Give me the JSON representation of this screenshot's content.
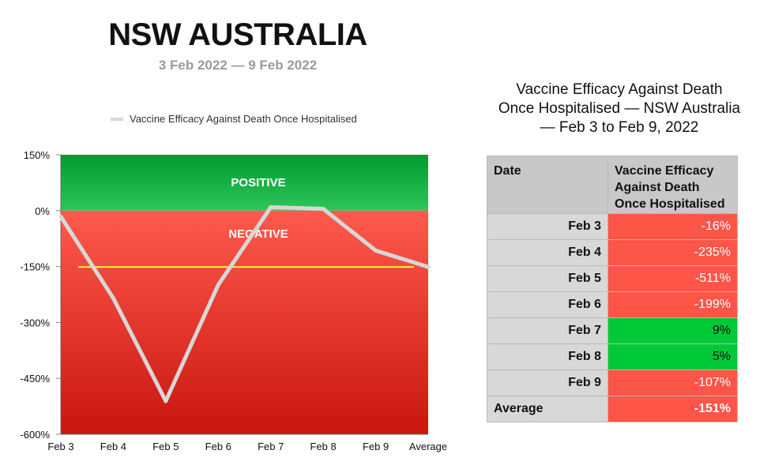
{
  "header": {
    "title": "NSW AUSTRALIA",
    "subtitle": "3 Feb 2022 — 9 Feb 2022"
  },
  "chart_data": {
    "type": "line",
    "title": "NSW AUSTRALIA",
    "subtitle": "3 Feb 2022 — 9 Feb 2022",
    "xlabel": "",
    "ylabel": "",
    "categories": [
      "Feb 3",
      "Feb 4",
      "Feb 5",
      "Feb 6",
      "Feb 7",
      "Feb 8",
      "Feb 9",
      "Average"
    ],
    "series": [
      {
        "name": "Vaccine Efficacy Against Death Once Hospitalised",
        "values": [
          -16,
          -235,
          -511,
          -199,
          9,
          5,
          -107,
          -151
        ],
        "color": "#d7d7d7"
      }
    ],
    "reference_line": {
      "value": -151,
      "color": "#f5f542"
    },
    "ylim": [
      -600,
      150
    ],
    "yticks": [
      150,
      0,
      -150,
      -300,
      -450,
      -600
    ],
    "ytick_labels": [
      "150%",
      "0%",
      "-150%",
      "-300%",
      "-450%",
      "-600%"
    ],
    "bands": [
      {
        "label": "POSITIVE",
        "from": 0,
        "to": 150,
        "colors": [
          "#009a2e",
          "#2fc65a"
        ]
      },
      {
        "label": "NEGATIVE",
        "from": -600,
        "to": 0,
        "colors": [
          "#ff5a4d",
          "#c9160e"
        ]
      }
    ],
    "legend": "top"
  },
  "table": {
    "title": "Vaccine Efficacy Against Death Once Hospitalised — NSW Australia — Feb 3 to Feb 9, 2022",
    "title_lines": [
      "Vaccine Efficacy Against Death",
      "Once Hospitalised — NSW Australia",
      "— Feb 3 to Feb 9, 2022"
    ],
    "headers": [
      "Date",
      "Vaccine Efficacy Against Death Once Hospitalised"
    ],
    "header_lines": [
      "Vaccine Efficacy",
      "Against Death",
      "Once Hospitalised"
    ],
    "rows": [
      {
        "date": "Feb 3",
        "value": "-16%",
        "status": "neg"
      },
      {
        "date": "Feb 4",
        "value": "-235%",
        "status": "neg"
      },
      {
        "date": "Feb 5",
        "value": "-511%",
        "status": "neg"
      },
      {
        "date": "Feb 6",
        "value": "-199%",
        "status": "neg"
      },
      {
        "date": "Feb 7",
        "value": "9%",
        "status": "pos"
      },
      {
        "date": "Feb 8",
        "value": "5%",
        "status": "pos"
      },
      {
        "date": "Feb 9",
        "value": "-107%",
        "status": "neg"
      },
      {
        "date": "Average",
        "value": "-151%",
        "status": "neg"
      }
    ],
    "colors": {
      "negative": "#fe5549",
      "positive": "#00c938",
      "header": "#c8c8c8"
    }
  }
}
